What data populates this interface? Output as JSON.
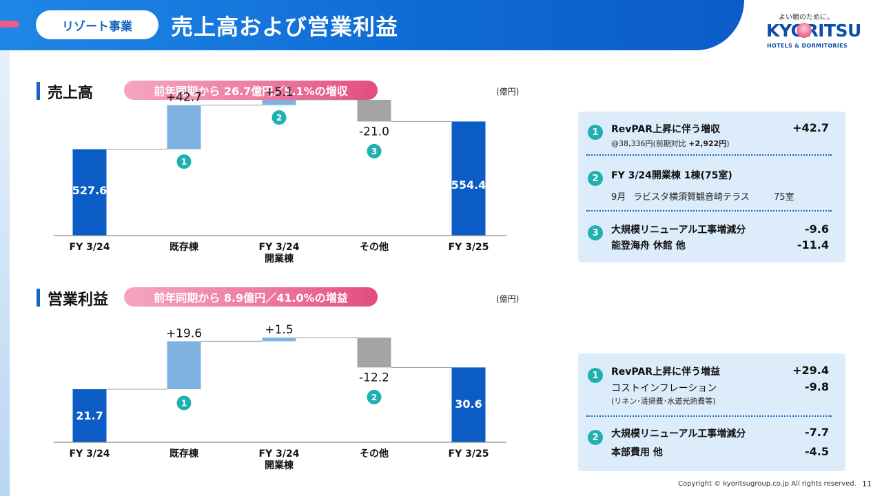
{
  "header": {
    "pill_label": "リゾート事業",
    "title": "売上高および営業利益"
  },
  "logo": {
    "tagline": "よい朝のために。",
    "wordmark": "KYORITSU",
    "subline": "HOTELS & DORMITORIES"
  },
  "sections": [
    {
      "title": "売上高",
      "pill": "前年同期から 26.7億円／5.1%の増収",
      "unit": "(億円)"
    },
    {
      "title": "営業利益",
      "pill": "前年同期から 8.9億円／41.0%の増益",
      "unit": "(億円)"
    }
  ],
  "chart_data": [
    {
      "type": "bar",
      "subtype": "waterfall",
      "title": "売上高",
      "categories": [
        "FY 3/24",
        "既存棟",
        "FY 3/24\n開業棟",
        "その他",
        "FY 3/25"
      ],
      "values": [
        527.6,
        42.7,
        5.1,
        -21.0,
        554.4
      ],
      "labels": [
        "527.6",
        "+42.7",
        "+5.1",
        "-21.0",
        "554.4"
      ],
      "markers": [
        "",
        "1",
        "2",
        "3",
        ""
      ],
      "kinds": [
        "total",
        "delta",
        "delta",
        "delta",
        "total"
      ],
      "colors": {
        "total": "#0b5cc4",
        "increase": "#7fb2e0",
        "decrease": "#a6a3a3"
      }
    },
    {
      "type": "bar",
      "subtype": "waterfall",
      "title": "営業利益",
      "categories": [
        "FY 3/24",
        "既存棟",
        "FY 3/24\n開業棟",
        "その他",
        "FY 3/25"
      ],
      "values": [
        21.7,
        19.6,
        1.5,
        -12.2,
        30.6
      ],
      "labels": [
        "21.7",
        "+19.6",
        "+1.5",
        "-12.2",
        "30.6"
      ],
      "markers": [
        "",
        "1",
        "",
        "2",
        ""
      ],
      "kinds": [
        "total",
        "delta",
        "delta",
        "delta",
        "total"
      ],
      "colors": {
        "total": "#0b5cc4",
        "increase": "#7fb2e0",
        "decrease": "#a6a3a3"
      }
    }
  ],
  "info_sales": {
    "items": [
      {
        "num": "1",
        "title": "RevPAR上昇に伴う増収",
        "value": "+42.7",
        "note_prefix": "@38,336円(前期対比 ",
        "note_bold": "+2,922円",
        "note_suffix": ")"
      },
      {
        "num": "2",
        "title": "FY 3/24開業棟  1棟(75室)",
        "detail_month": "9月",
        "detail_name": "ラビスタ横須賀観音崎テラス",
        "detail_rooms": "75室"
      },
      {
        "num": "3",
        "line1": "大規模リニューアル工事増減分",
        "value1": "-9.6",
        "line2": "能登海舟 休館  他",
        "value2": "-11.4"
      }
    ]
  },
  "info_profit": {
    "items": [
      {
        "num": "1",
        "line1": "RevPAR上昇に伴う増益",
        "value1": "+29.4",
        "line2": "コストインフレーション",
        "value2": "-9.8",
        "note": "(リネン･清掃費･水道光熱費等)"
      },
      {
        "num": "2",
        "line1": "大規模リニューアル工事増減分",
        "value1": "-7.7",
        "line2": "本部費用 他",
        "value2": "-4.5"
      }
    ]
  },
  "footer": {
    "copyright": "Copyright © kyoritsugroup.co.jp All rights reserved.",
    "page": "11"
  }
}
